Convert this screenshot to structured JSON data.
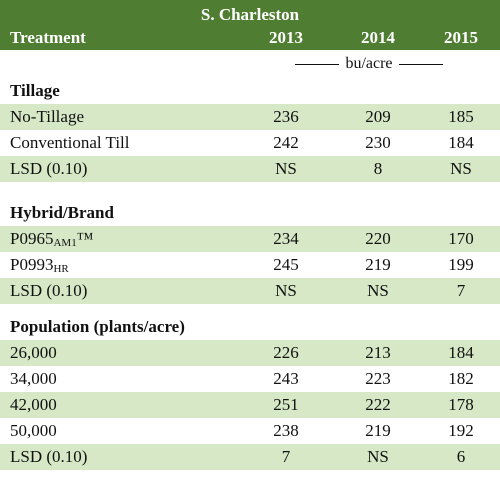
{
  "table": {
    "location": "S. Charleston",
    "columns": [
      "Treatment",
      "2013",
      "2014",
      "2015"
    ],
    "unit": "bu/acre",
    "sections": [
      {
        "title": "Tillage",
        "rows": [
          {
            "label": "No-Tillage",
            "values": [
              "236",
              "209",
              "185"
            ],
            "shaded": true
          },
          {
            "label": "Conventional Till",
            "values": [
              "242",
              "230",
              "184"
            ],
            "shaded": false
          },
          {
            "label": "LSD (0.10)",
            "values": [
              "NS",
              "8",
              "NS"
            ],
            "shaded": true
          }
        ]
      },
      {
        "title": "Hybrid/Brand",
        "rows": [
          {
            "label_main": "P0965",
            "label_sub": "AM1",
            "label_tail": "™",
            "values": [
              "234",
              "220",
              "170"
            ],
            "shaded": true
          },
          {
            "label_main": "P0993",
            "label_sub": "HR",
            "label_tail": "",
            "values": [
              "245",
              "219",
              "199"
            ],
            "shaded": false
          },
          {
            "label": "LSD (0.10)",
            "values": [
              "NS",
              "NS",
              "7"
            ],
            "shaded": true
          }
        ]
      },
      {
        "title": "Population (plants/acre)",
        "rows": [
          {
            "label": "26,000",
            "values": [
              "226",
              "213",
              "184"
            ],
            "shaded": true
          },
          {
            "label": "34,000",
            "values": [
              "243",
              "223",
              "182"
            ],
            "shaded": false
          },
          {
            "label": "42,000",
            "values": [
              "251",
              "222",
              "178"
            ],
            "shaded": true
          },
          {
            "label": "50,000",
            "values": [
              "238",
              "219",
              "192"
            ],
            "shaded": false
          },
          {
            "label": "LSD (0.10)",
            "values": [
              "7",
              "NS",
              "6"
            ],
            "shaded": true
          }
        ]
      }
    ]
  },
  "colors": {
    "header_bg": "#4f7d32",
    "header_text": "#ffffff",
    "shade": "#d6e8c6"
  }
}
